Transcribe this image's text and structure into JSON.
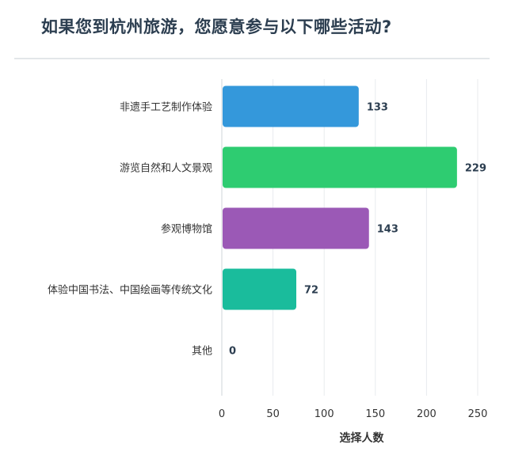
{
  "chart_data": {
    "type": "bar",
    "orientation": "horizontal",
    "title": "如果您到杭州旅游，您愿意参与以下哪些活动?",
    "categories": [
      "非遗手工艺制作体验",
      "游览自然和人文景观",
      "参观博物馆",
      "体验中国书法、中国绘画等传统文化",
      "其他"
    ],
    "values": [
      133,
      229,
      143,
      72,
      0
    ],
    "value_labels": [
      "133",
      "229",
      "143",
      "72",
      "0"
    ],
    "colors": [
      "#3498db",
      "#2ecc71",
      "#9b59b6",
      "#1abc9c",
      "#95a5a6"
    ],
    "xlabel": "选择人数",
    "ylabel": "",
    "xlim": [
      0,
      250
    ],
    "xticks": [
      "0",
      "50",
      "100",
      "150",
      "200",
      "250"
    ],
    "grid": true,
    "legend": "none"
  }
}
